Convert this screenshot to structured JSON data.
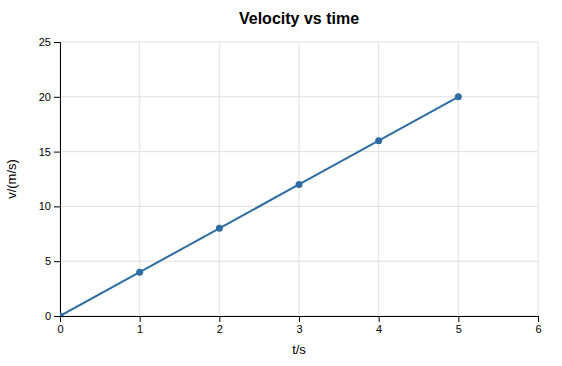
{
  "chart_data": {
    "type": "line",
    "title": "Velocity vs time",
    "xlabel": "t/s",
    "ylabel": "v/(m/s)",
    "x": [
      0,
      1,
      2,
      3,
      4,
      5
    ],
    "values": [
      0,
      4,
      8,
      12,
      16,
      20
    ],
    "color": "#2E6DA4",
    "marker": "circle",
    "xlim": [
      0,
      6
    ],
    "ylim": [
      0,
      25
    ],
    "xticks": [
      0,
      1,
      2,
      3,
      4,
      5,
      6
    ],
    "yticks": [
      0,
      5,
      10,
      15,
      20,
      25
    ],
    "grid": true
  }
}
